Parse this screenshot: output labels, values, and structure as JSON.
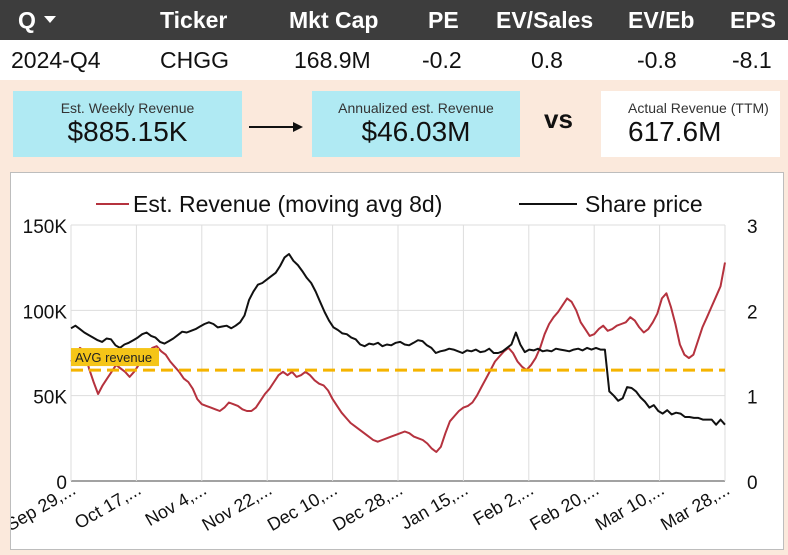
{
  "header": {
    "columns": [
      "Q",
      "Ticker",
      "Mkt Cap",
      "PE",
      "EV/Sales",
      "EV/Eb",
      "EPS"
    ],
    "values": [
      "2024-Q4",
      "CHGG",
      "168.9M",
      "-0.2",
      "0.8",
      "-0.8",
      "-8.1"
    ]
  },
  "cards": {
    "weekly": {
      "label": "Est. Weekly Revenue",
      "value": "$885.15K"
    },
    "annualized": {
      "label": "Annualized est. Revenue",
      "value": "$46.03M"
    },
    "vs": "vs",
    "actual": {
      "label": "Actual Revenue (TTM)",
      "value": "617.6M"
    }
  },
  "colors": {
    "header_bg": "#3d3d3d",
    "card_bg": "#b0eaf3",
    "page_bg": "#fbe9dc",
    "revenue_line": "#b5323e",
    "price_line": "#111111",
    "avg_line": "#f5b400"
  },
  "chart_data": {
    "type": "line",
    "legend": [
      "Est. Revenue (moving avg 8d)",
      "Share price"
    ],
    "legend_position": "top",
    "x_ticks": [
      "Sep 29,...",
      "Oct 17,...",
      "Nov 4,...",
      "Nov 22,...",
      "Dec 10,...",
      "Dec 28,...",
      "Jan 15,...",
      "Feb 2,...",
      "Feb 20,...",
      "Mar 10,...",
      "Mar 28,..."
    ],
    "y_left": {
      "ticks": [
        "0",
        "50K",
        "100K",
        "150K"
      ],
      "range": [
        0,
        150000
      ]
    },
    "y_right": {
      "ticks": [
        "0",
        "1",
        "2",
        "3"
      ],
      "range": [
        0,
        3
      ]
    },
    "avg_line": {
      "label": "AVG revenue",
      "value": 65000
    },
    "grid": true,
    "series": [
      {
        "name": "Est. Revenue (moving avg 8d)",
        "axis": "left",
        "values": [
          70000,
          73000,
          78000,
          76000,
          66000,
          58000,
          51000,
          56000,
          60000,
          64000,
          68000,
          66000,
          64000,
          61000,
          64000,
          68000,
          72000,
          75000,
          78000,
          79000,
          76000,
          74000,
          70000,
          67000,
          64000,
          60000,
          58000,
          54000,
          48000,
          45000,
          44000,
          43000,
          42000,
          41000,
          43000,
          46000,
          45000,
          44000,
          42000,
          41000,
          41000,
          43000,
          47000,
          51000,
          54000,
          58000,
          62000,
          64000,
          62000,
          64000,
          61000,
          62000,
          64000,
          62000,
          59000,
          57000,
          56000,
          53000,
          48000,
          44000,
          40000,
          37000,
          34000,
          32000,
          30000,
          28000,
          26000,
          24000,
          23000,
          24000,
          25000,
          26000,
          27000,
          28000,
          29000,
          28000,
          26000,
          25000,
          24000,
          22000,
          19000,
          17000,
          20000,
          28000,
          35000,
          38000,
          41000,
          43000,
          44000,
          46000,
          50000,
          55000,
          60000,
          65000,
          70000,
          73000,
          76000,
          78000,
          75000,
          70000,
          67000,
          65000,
          68000,
          72000,
          78000,
          86000,
          92000,
          96000,
          99000,
          103000,
          107000,
          105000,
          100000,
          93000,
          89000,
          85000,
          86000,
          89000,
          91000,
          88000,
          89000,
          91000,
          92000,
          93000,
          96000,
          94000,
          90000,
          87000,
          89000,
          93000,
          98000,
          107000,
          110000,
          102000,
          92000,
          80000,
          74000,
          72000,
          74000,
          82000,
          90000,
          96000,
          102000,
          108000,
          114000,
          128000
        ]
      },
      {
        "name": "Share price",
        "axis": "right",
        "values": [
          1.79,
          1.82,
          1.78,
          1.74,
          1.71,
          1.68,
          1.65,
          1.63,
          1.67,
          1.66,
          1.59,
          1.56,
          1.6,
          1.62,
          1.65,
          1.68,
          1.72,
          1.74,
          1.7,
          1.68,
          1.63,
          1.61,
          1.64,
          1.67,
          1.71,
          1.75,
          1.74,
          1.76,
          1.78,
          1.81,
          1.84,
          1.86,
          1.84,
          1.8,
          1.81,
          1.82,
          1.79,
          1.82,
          1.86,
          1.94,
          2.12,
          2.22,
          2.3,
          2.32,
          2.36,
          2.4,
          2.44,
          2.52,
          2.62,
          2.66,
          2.58,
          2.53,
          2.46,
          2.38,
          2.32,
          2.22,
          2.1,
          1.98,
          1.88,
          1.8,
          1.77,
          1.73,
          1.72,
          1.68,
          1.66,
          1.6,
          1.58,
          1.61,
          1.6,
          1.62,
          1.58,
          1.6,
          1.59,
          1.62,
          1.63,
          1.6,
          1.59,
          1.62,
          1.65,
          1.64,
          1.59,
          1.56,
          1.5,
          1.52,
          1.53,
          1.55,
          1.54,
          1.52,
          1.5,
          1.53,
          1.52,
          1.54,
          1.51,
          1.52,
          1.55,
          1.5,
          1.5,
          1.52,
          1.56,
          1.6,
          1.74,
          1.6,
          1.51,
          1.54,
          1.53,
          1.55,
          1.52,
          1.53,
          1.52,
          1.55,
          1.54,
          1.53,
          1.52,
          1.54,
          1.55,
          1.53,
          1.56,
          1.54,
          1.56,
          1.54,
          1.54,
          1.05,
          1.0,
          0.94,
          0.97,
          1.1,
          1.09,
          1.05,
          0.98,
          0.93,
          0.86,
          0.89,
          0.82,
          0.79,
          0.83,
          0.78,
          0.8,
          0.79,
          0.75,
          0.75,
          0.74,
          0.74,
          0.72,
          0.72,
          0.72,
          0.66,
          0.72,
          0.66
        ]
      }
    ]
  }
}
